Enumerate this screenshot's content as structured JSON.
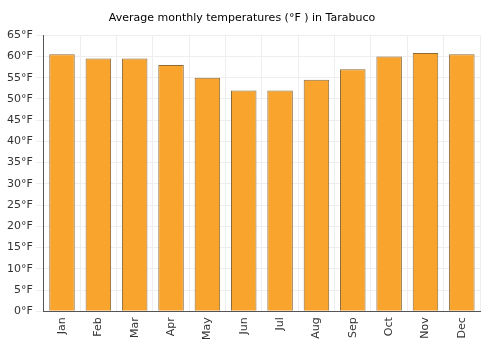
{
  "chart_data": {
    "type": "bar",
    "title": "Average monthly temperatures (°F ) in Tarabuco",
    "categories": [
      "Jan",
      "Feb",
      "Mar",
      "Apr",
      "May",
      "Jun",
      "Jul",
      "Aug",
      "Sep",
      "Oct",
      "Nov",
      "Dec"
    ],
    "values": [
      60.5,
      59.5,
      59.5,
      58,
      55,
      52,
      52,
      54.5,
      57,
      60,
      60.8,
      60.5
    ],
    "color": "#f9a42c",
    "ylim": [
      0,
      65
    ],
    "yticks": [
      {
        "value": 0,
        "label": "0°F"
      },
      {
        "value": 5,
        "label": "5°F"
      },
      {
        "value": 10,
        "label": "10°F"
      },
      {
        "value": 15,
        "label": "15°F"
      },
      {
        "value": 20,
        "label": "20°F"
      },
      {
        "value": 25,
        "label": "25°F"
      },
      {
        "value": 30,
        "label": "30°F"
      },
      {
        "value": 35,
        "label": "35°F"
      },
      {
        "value": 40,
        "label": "40°F"
      },
      {
        "value": 45,
        "label": "45°F"
      },
      {
        "value": 50,
        "label": "50°F"
      },
      {
        "value": 55,
        "label": "55°F"
      },
      {
        "value": 60,
        "label": "60°F"
      },
      {
        "value": 65,
        "label": "65°F"
      }
    ],
    "grid": true
  }
}
